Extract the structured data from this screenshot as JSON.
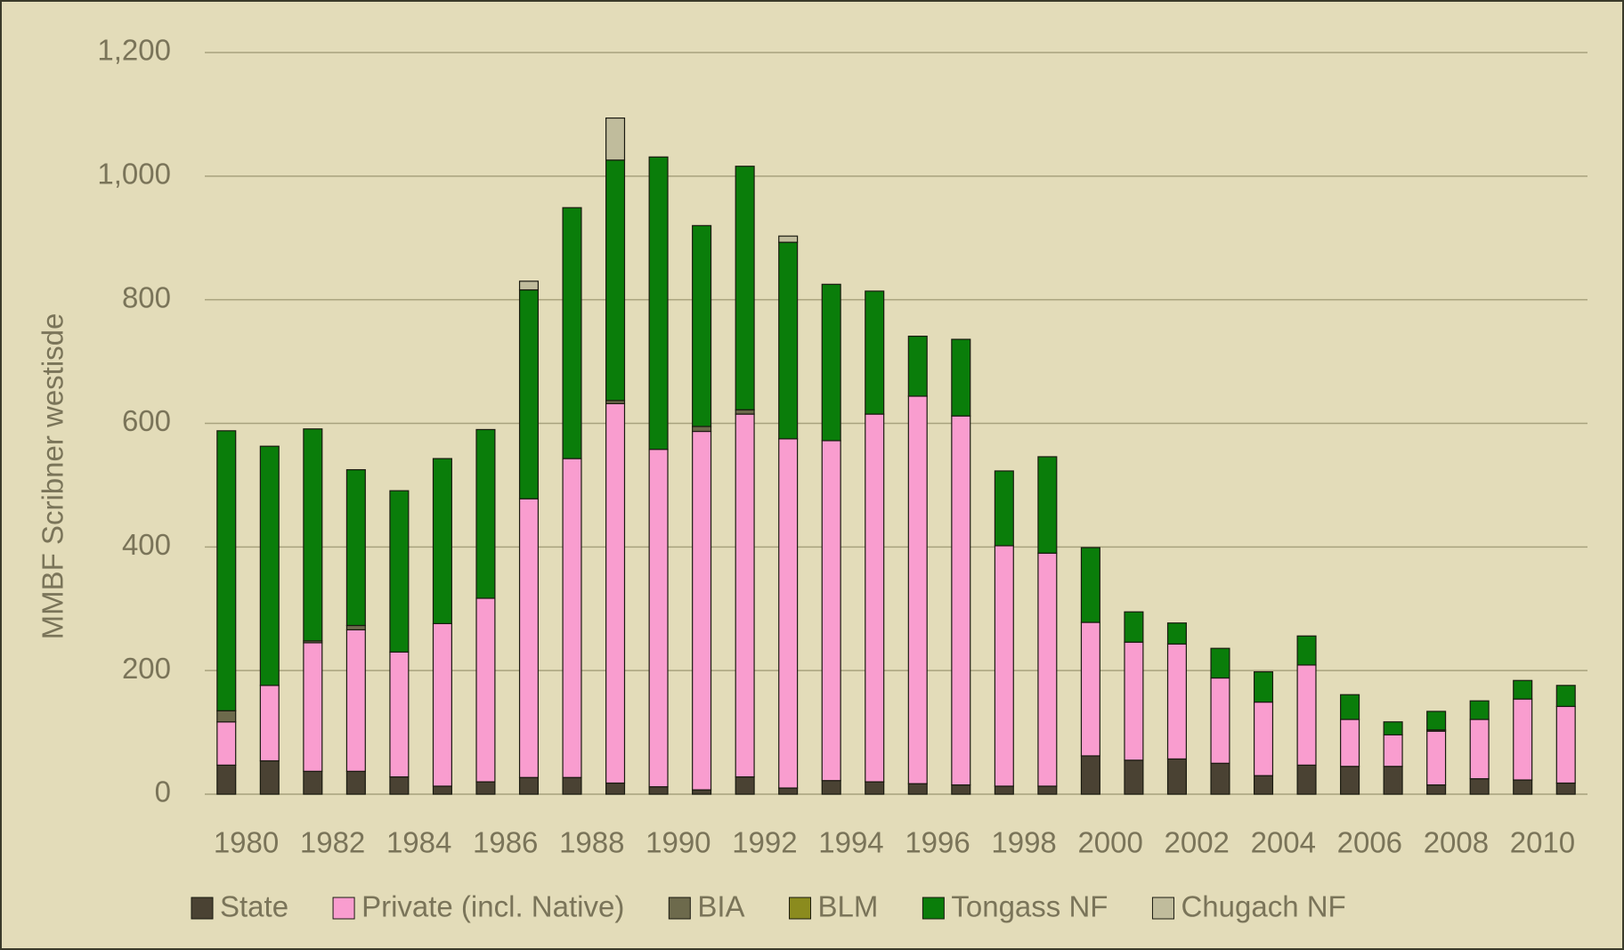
{
  "chart_data": {
    "type": "stacked_bar",
    "y_label": "MMBF Scribner westisde",
    "categories": [
      "1980",
      null,
      "1982",
      null,
      "1984",
      null,
      "1986",
      null,
      "1988",
      null,
      "1990",
      null,
      "1992",
      null,
      "1994",
      null,
      "1996",
      null,
      "1998",
      null,
      "2000",
      null,
      "2002",
      null,
      "2004",
      null,
      "2006",
      null,
      "2008",
      null,
      "2010",
      null
    ],
    "series": [
      {
        "name": "State",
        "color": "#4a4233",
        "values": [
          47,
          54,
          37,
          37,
          28,
          13,
          20,
          27,
          27,
          18,
          12,
          7,
          28,
          10,
          22,
          20,
          17,
          15,
          13,
          13,
          62,
          55,
          57,
          50,
          30,
          47,
          45,
          45,
          15,
          25,
          23,
          18
        ]
      },
      {
        "name": "Private (incl. Native)",
        "color": "#f99dcf",
        "values": [
          70,
          122,
          208,
          229,
          202,
          263,
          297,
          451,
          516,
          614,
          546,
          580,
          587,
          565,
          550,
          595,
          627,
          597,
          389,
          377,
          216,
          191,
          186,
          138,
          119,
          162,
          76,
          51,
          87,
          96,
          131,
          124
        ]
      },
      {
        "name": "BIA",
        "color": "#6d6a4c",
        "values": [
          18,
          0,
          3,
          7,
          0,
          0,
          0,
          0,
          0,
          5,
          0,
          8,
          7,
          0,
          0,
          0,
          0,
          0,
          0,
          0,
          0,
          0,
          0,
          0,
          0,
          0,
          0,
          0,
          2,
          0,
          0,
          0
        ]
      },
      {
        "name": "BLM",
        "color": "#8b8b1e",
        "values": [
          0,
          0,
          0,
          0,
          0,
          0,
          0,
          0,
          0,
          0,
          0,
          0,
          0,
          0,
          0,
          0,
          0,
          0,
          0,
          0,
          0,
          0,
          0,
          0,
          0,
          0,
          0,
          0,
          0,
          0,
          0,
          0
        ]
      },
      {
        "name": "Tongass NF",
        "color": "#0a7d0a",
        "values": [
          453,
          387,
          343,
          252,
          261,
          267,
          273,
          338,
          406,
          389,
          473,
          325,
          394,
          318,
          253,
          199,
          97,
          124,
          121,
          156,
          121,
          49,
          34,
          48,
          49,
          47,
          40,
          21,
          30,
          30,
          30,
          34
        ]
      },
      {
        "name": "Chugach NF",
        "color": "#c0bc9c",
        "values": [
          0,
          0,
          0,
          0,
          0,
          0,
          0,
          14,
          0,
          68,
          0,
          0,
          0,
          10,
          0,
          0,
          0,
          0,
          0,
          0,
          0,
          0,
          0,
          0,
          0,
          0,
          0,
          0,
          0,
          0,
          0,
          0
        ]
      }
    ],
    "ylim": [
      0,
      1200
    ],
    "yticks": [
      0,
      200,
      400,
      600,
      800,
      {
        "value": 1000,
        "label": "1,000"
      },
      {
        "value": 1200,
        "label": "1,200"
      }
    ],
    "grid": true,
    "legend": "bottom"
  }
}
